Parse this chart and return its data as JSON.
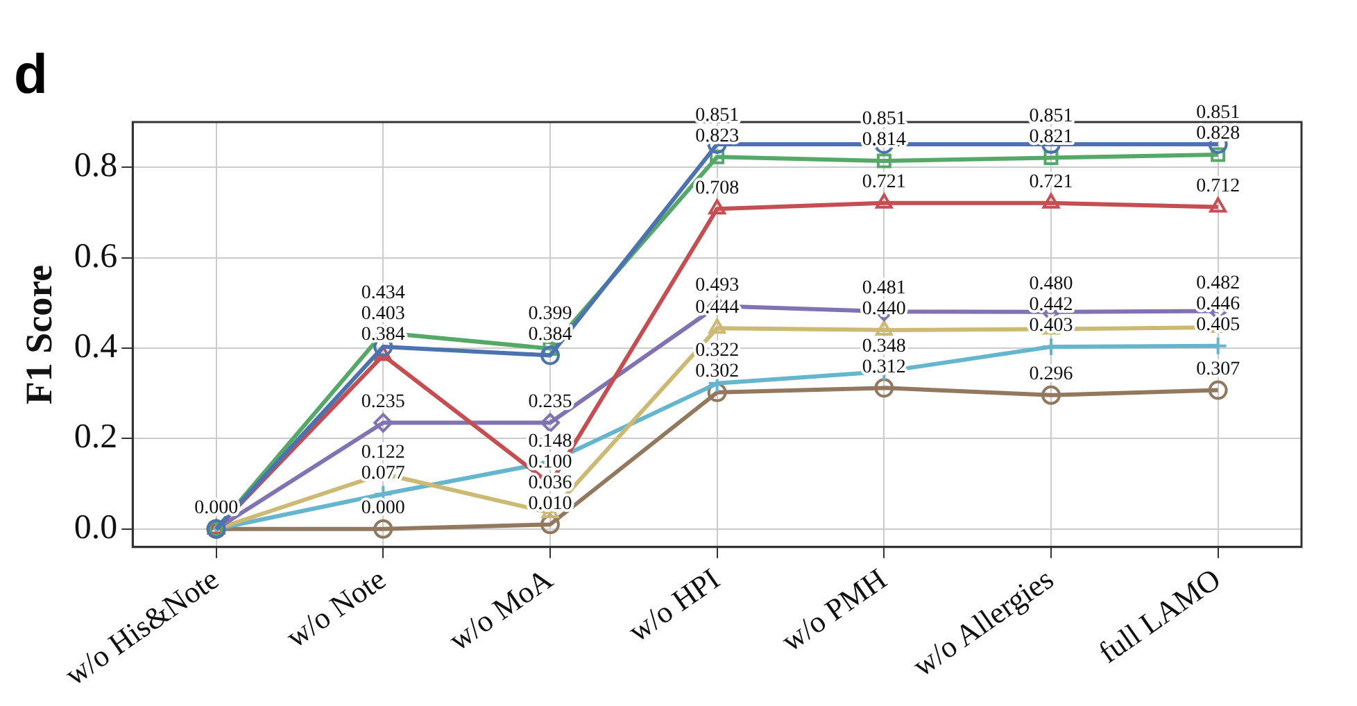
{
  "chart_data": {
    "type": "line",
    "title": "d",
    "ylabel": "F1 Score",
    "categories": [
      "w/o His&Note",
      "w/o Note",
      "w/o MoA",
      "w/o HPI",
      "w/o PMH",
      "w/o Allergies",
      "full LAMO"
    ],
    "series": [
      {
        "color": "#4c72b0",
        "marker": "circle",
        "values": [
          0.0,
          0.403,
          0.384,
          0.851,
          0.851,
          0.851,
          0.851
        ],
        "value_labels": [
          "0.000",
          "0.403",
          "0.384",
          "0.851",
          "0.851",
          "0.851",
          "0.851"
        ]
      },
      {
        "color": "#55a868",
        "marker": "square",
        "values": [
          0.0,
          0.434,
          0.399,
          0.823,
          0.814,
          0.821,
          0.828
        ],
        "value_labels": [
          null,
          "0.434",
          "0.399",
          "0.823",
          "0.814",
          "0.821",
          "0.828"
        ]
      },
      {
        "color": "#c44e52",
        "marker": "triangle",
        "values": [
          0.0,
          0.384,
          0.1,
          0.708,
          0.721,
          0.721,
          0.712
        ],
        "value_labels": [
          null,
          "0.384",
          "0.100",
          "0.708",
          "0.721",
          "0.721",
          "0.712"
        ]
      },
      {
        "color": "#8172b2",
        "marker": "diamond",
        "values": [
          0.0,
          0.235,
          0.235,
          0.493,
          0.481,
          0.48,
          0.482
        ],
        "value_labels": [
          null,
          "0.235",
          "0.235",
          "0.493",
          "0.481",
          "0.480",
          "0.482"
        ]
      },
      {
        "color": "#ccb974",
        "marker": "triangle",
        "values": [
          0.0,
          0.122,
          0.036,
          0.444,
          0.44,
          0.442,
          0.446
        ],
        "value_labels": [
          null,
          "0.122",
          "0.036",
          "0.444",
          "0.440",
          "0.442",
          "0.446"
        ]
      },
      {
        "color": "#64b5cd",
        "marker": "cross",
        "values": [
          0.0,
          0.077,
          0.148,
          0.322,
          0.348,
          0.403,
          0.405
        ],
        "value_labels": [
          null,
          "0.077",
          "0.148",
          "0.322",
          "0.348",
          "0.403",
          "0.405"
        ]
      },
      {
        "color": "#937860",
        "marker": "circle",
        "values": [
          0.0,
          0.0,
          0.01,
          0.302,
          0.312,
          0.296,
          0.307
        ],
        "value_labels": [
          null,
          "0.000",
          "0.010",
          "0.302",
          "0.312",
          "0.296",
          "0.307"
        ]
      }
    ],
    "ylim": [
      -0.04,
      0.9
    ],
    "yticks": [
      {
        "value": 0,
        "label": "0.0"
      },
      {
        "value": 0.2,
        "label": "0.2"
      },
      {
        "value": 0.4,
        "label": "0.4"
      },
      {
        "value": 0.6,
        "label": "0.6"
      },
      {
        "value": 0.8,
        "label": "0.8"
      }
    ],
    "grid": true,
    "legend": false,
    "line_style": "solid"
  }
}
